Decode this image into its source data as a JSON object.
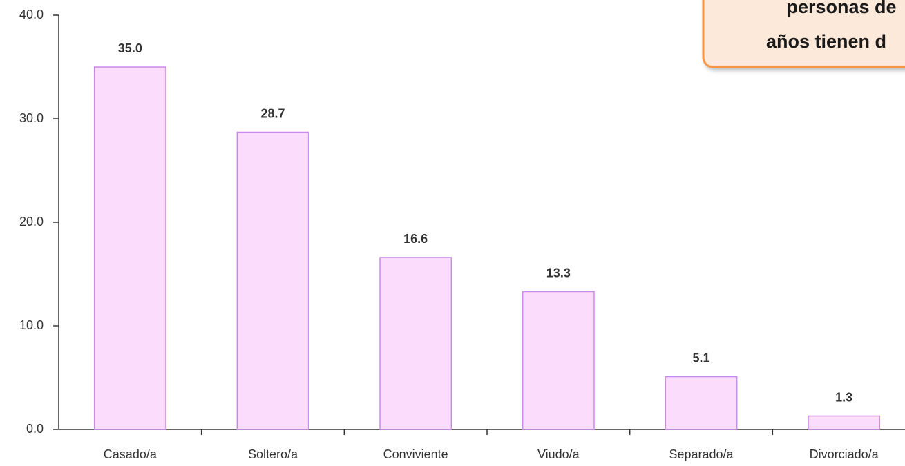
{
  "chart_data": {
    "type": "bar",
    "categories": [
      "Casado/a",
      "Soltero/a",
      "Conviviente",
      "Viudo/a",
      "Separado/a",
      "Divorciado/a"
    ],
    "values": [
      35.0,
      28.7,
      16.6,
      13.3,
      5.1,
      1.3
    ],
    "value_labels": [
      "35.0",
      "28.7",
      "16.6",
      "13.3",
      "5.1",
      "1.3"
    ],
    "color": "#fcdcfc",
    "ylim": [
      0,
      40
    ],
    "yticks": [
      {
        "value": 0,
        "label": "0.0"
      },
      {
        "value": 10,
        "label": "10.0"
      },
      {
        "value": 20,
        "label": "20.0"
      },
      {
        "value": 30,
        "label": "30.0"
      },
      {
        "value": 40,
        "label": "40.0"
      }
    ],
    "grid": false,
    "annotation": [
      "personas de",
      "años tienen d"
    ]
  }
}
